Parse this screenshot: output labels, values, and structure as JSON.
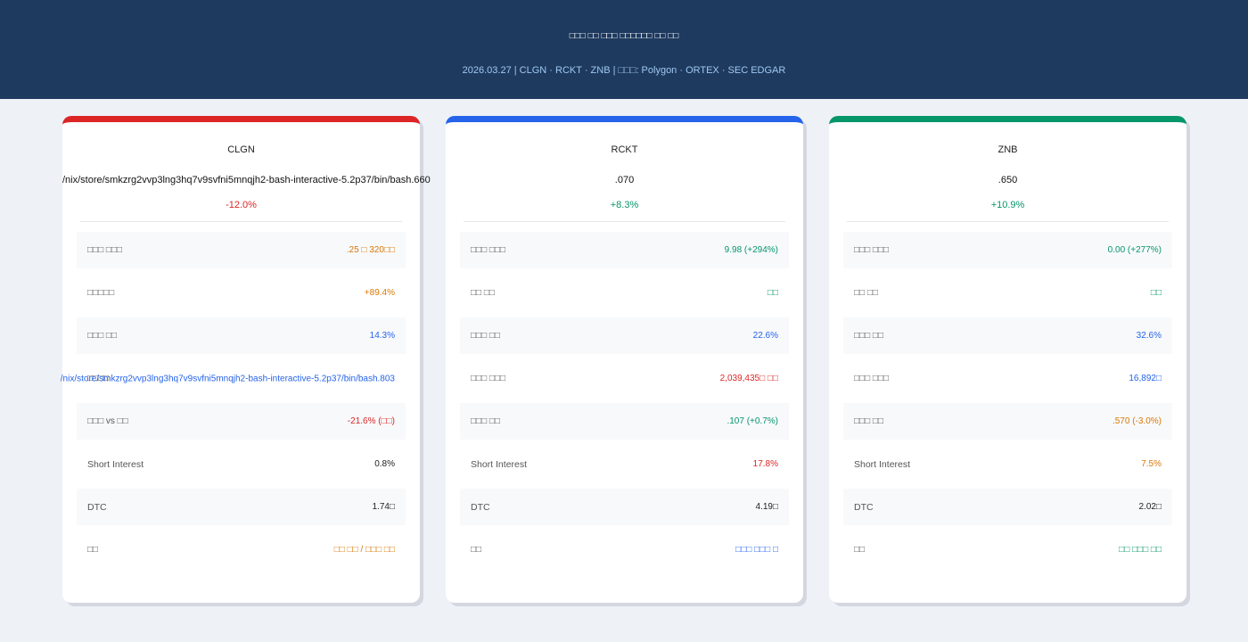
{
  "header": {
    "title": "□□□ □□ □□□ □□□□□□ □□ □□",
    "subtitle": "2026.03.27 | CLGN · RCKT · ZNB | □□□: Polygon · ORTEX · SEC EDGAR"
  },
  "colors": {
    "header_bg": "#1f3a5f",
    "red": "#dc2626",
    "blue": "#2563eb",
    "green": "#059669",
    "orange": "#d97706"
  },
  "cards": [
    {
      "ticker": "CLGN",
      "price": "/nix/store/smkzrg2vvp3lng3hq7v9svfni5mnqjh2-bash-interactive-5.2p37/bin/bash.660",
      "change": "-12.0%",
      "rows": [
        {
          "label": "□□□ □□□",
          "value": ".25 □ 320□□"
        },
        {
          "label": "□□□□□",
          "value": "+89.4%"
        },
        {
          "label": "□□□ □□",
          "value": "14.3%"
        },
        {
          "label": "□□□□",
          "value": "/nix/store/smkzrg2vvp3lng3hq7v9svfni5mnqjh2-bash-interactive-5.2p37/bin/bash.803"
        },
        {
          "label": "□□□ vs □□",
          "value": "-21.6% (□□)"
        },
        {
          "label": "Short Interest",
          "value": "0.8%"
        },
        {
          "label": "DTC",
          "value": "1.74□"
        },
        {
          "label": "□□",
          "value": "□□ □□ / □□□ □□"
        }
      ]
    },
    {
      "ticker": "RCKT",
      "price": ".070",
      "change": "+8.3%",
      "rows": [
        {
          "label": "□□□ □□□",
          "value": "9.98 (+294%)"
        },
        {
          "label": "□□ □□",
          "value": "□□"
        },
        {
          "label": "□□□ □□",
          "value": "22.6%"
        },
        {
          "label": "□□□ □□□",
          "value": "2,039,435□ □□"
        },
        {
          "label": "□□□ □□",
          "value": ".107 (+0.7%)"
        },
        {
          "label": "Short Interest",
          "value": "17.8%"
        },
        {
          "label": "DTC",
          "value": "4.19□"
        },
        {
          "label": "□□",
          "value": "□□□ □□□ □"
        }
      ]
    },
    {
      "ticker": "ZNB",
      "price": ".650",
      "change": "+10.9%",
      "rows": [
        {
          "label": "□□□ □□□",
          "value": "0.00 (+277%)"
        },
        {
          "label": "□□ □□",
          "value": "□□"
        },
        {
          "label": "□□□ □□",
          "value": "32.6%"
        },
        {
          "label": "□□□ □□□",
          "value": "16,892□"
        },
        {
          "label": "□□□ □□",
          "value": ".570 (-3.0%)"
        },
        {
          "label": "Short Interest",
          "value": "7.5%"
        },
        {
          "label": "DTC",
          "value": "2.02□"
        },
        {
          "label": "□□",
          "value": "□□ □□□ □□"
        }
      ]
    }
  ]
}
